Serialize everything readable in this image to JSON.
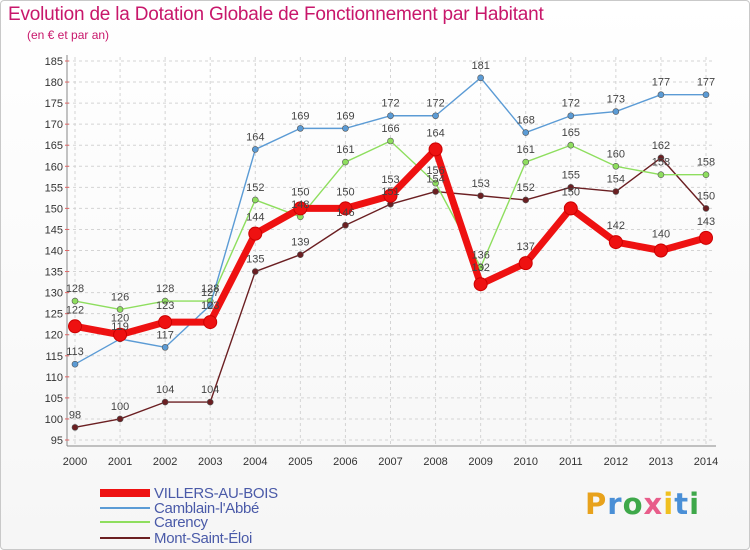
{
  "title": "Evolution de la Dotation Globale de Fonctionnement par Habitant",
  "subtitle": "(en € et par an)",
  "brand": {
    "text": "Proxiti",
    "colors": [
      "#e8a21c",
      "#4a8fd6",
      "#3ea84a",
      "#e85d8a",
      "#f0c020",
      "#4a8fd6",
      "#3ea84a"
    ]
  },
  "chart_data": {
    "type": "line",
    "title": "Evolution de la Dotation Globale de Fonctionnement par Habitant",
    "subtitle": "(en € et par an)",
    "xlabel": "",
    "ylabel": "",
    "ylim": [
      95,
      185
    ],
    "y_ticks": [
      "95",
      "100",
      "105",
      "110",
      "115",
      "120",
      "125",
      "130",
      "135",
      "140",
      "145",
      "150",
      "155",
      "160",
      "165",
      "170",
      "175",
      "180",
      "185"
    ],
    "categories": [
      "2000",
      "2001",
      "2002",
      "2003",
      "2004",
      "2005",
      "2006",
      "2007",
      "2008",
      "2009",
      "2010",
      "2011",
      "2012",
      "2013",
      "2014"
    ],
    "grid": true,
    "legend_position": "bottom-left",
    "series": [
      {
        "name": "Mont-Saint-Éloi",
        "color": "#6b1f22",
        "values": [
          98,
          100,
          104,
          104,
          135,
          139,
          146,
          151,
          154,
          153,
          152,
          155,
          154,
          162,
          150
        ]
      },
      {
        "name": "Carency",
        "color": "#8ede5e",
        "values": [
          128,
          126,
          128,
          128,
          152,
          148,
          161,
          166,
          156,
          136,
          161,
          165,
          160,
          158,
          158
        ]
      },
      {
        "name": "Camblain-l'Abbé",
        "color": "#5b9bd5",
        "values": [
          113,
          119,
          117,
          127,
          164,
          169,
          169,
          172,
          172,
          181,
          168,
          172,
          173,
          177,
          177
        ]
      },
      {
        "name": "VILLERS-AU-BOIS",
        "color": "#ee1111",
        "values": [
          122,
          120,
          123,
          123,
          144,
          150,
          150,
          153,
          164,
          132,
          137,
          150,
          142,
          140,
          143
        ]
      }
    ]
  },
  "legend": [
    {
      "name": "VILLERS-AU-BOIS",
      "color": "#ee1111"
    },
    {
      "name": "Camblain-l'Abbé",
      "color": "#5b9bd5"
    },
    {
      "name": "Carency",
      "color": "#8ede5e"
    },
    {
      "name": "Mont-Saint-Éloi",
      "color": "#6b1f22"
    }
  ]
}
